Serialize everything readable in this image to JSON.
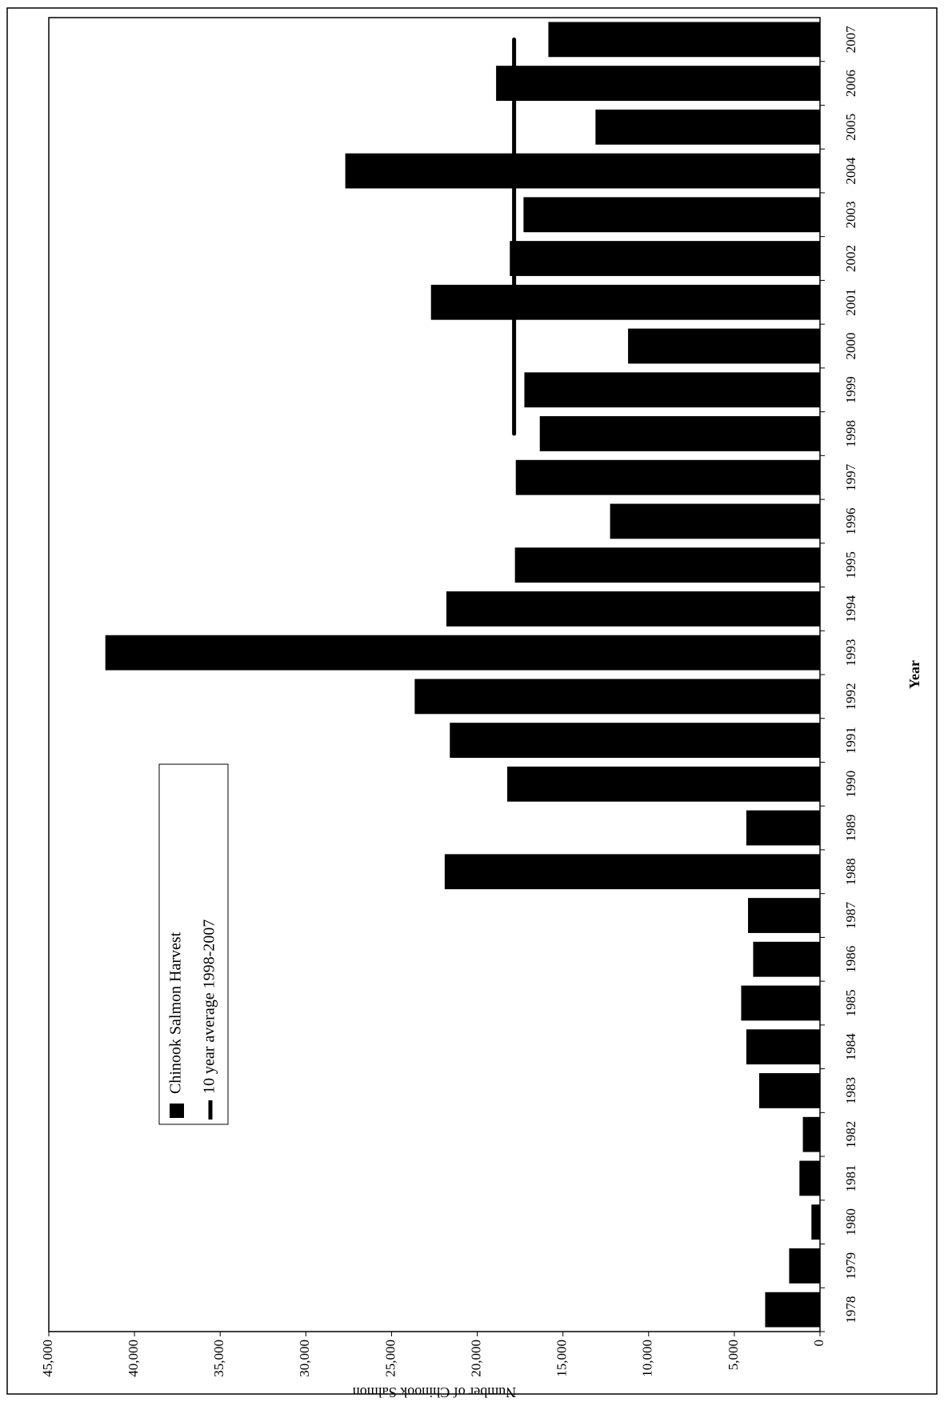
{
  "chart_data": {
    "type": "bar",
    "x_label": "Year",
    "y_label": "Number of Chinook Salmon",
    "categories": [
      "1978",
      "1979",
      "1980",
      "1981",
      "1982",
      "1983",
      "1984",
      "1985",
      "1986",
      "1987",
      "1988",
      "1989",
      "1990",
      "1991",
      "1992",
      "1993",
      "1994",
      "1995",
      "1996",
      "1997",
      "1998",
      "1999",
      "2000",
      "2001",
      "2002",
      "2003",
      "2004",
      "2005",
      "2006",
      "2007"
    ],
    "series": [
      {
        "name": "Chinook Salmon Harvest",
        "type": "bar",
        "color": "#000000",
        "values": [
          3200,
          1800,
          500,
          1200,
          1000,
          3550,
          4300,
          4600,
          3900,
          4200,
          21900,
          4300,
          18250,
          21600,
          23650,
          41700,
          21800,
          17800,
          12250,
          17750,
          16350,
          17250,
          11200,
          22700,
          18100,
          17300,
          27700,
          13100,
          18900,
          15850
        ]
      },
      {
        "name": "10 year average 1998-2007",
        "type": "line",
        "color": "#000000",
        "values": [
          null,
          null,
          null,
          null,
          null,
          null,
          null,
          null,
          null,
          null,
          null,
          null,
          null,
          null,
          null,
          null,
          null,
          null,
          null,
          null,
          17850,
          17850,
          17850,
          17850,
          17850,
          17850,
          17850,
          17850,
          17850,
          17850
        ]
      }
    ],
    "ylim": [
      0,
      45000
    ],
    "yticks": [
      0,
      {
        "value": 5000,
        "label": "5,000"
      },
      {
        "value": 10000,
        "label": "10,000"
      },
      {
        "value": 15000,
        "label": "15,000"
      },
      {
        "value": 20000,
        "label": "20,000"
      },
      {
        "value": 25000,
        "label": "25,000"
      },
      {
        "value": 30000,
        "label": "30,000"
      },
      {
        "value": 35000,
        "label": "35,000"
      },
      {
        "value": 40000,
        "label": "40,000"
      },
      {
        "value": 45000,
        "label": "45,000"
      }
    ],
    "grid": false,
    "legend": "upper-left"
  }
}
